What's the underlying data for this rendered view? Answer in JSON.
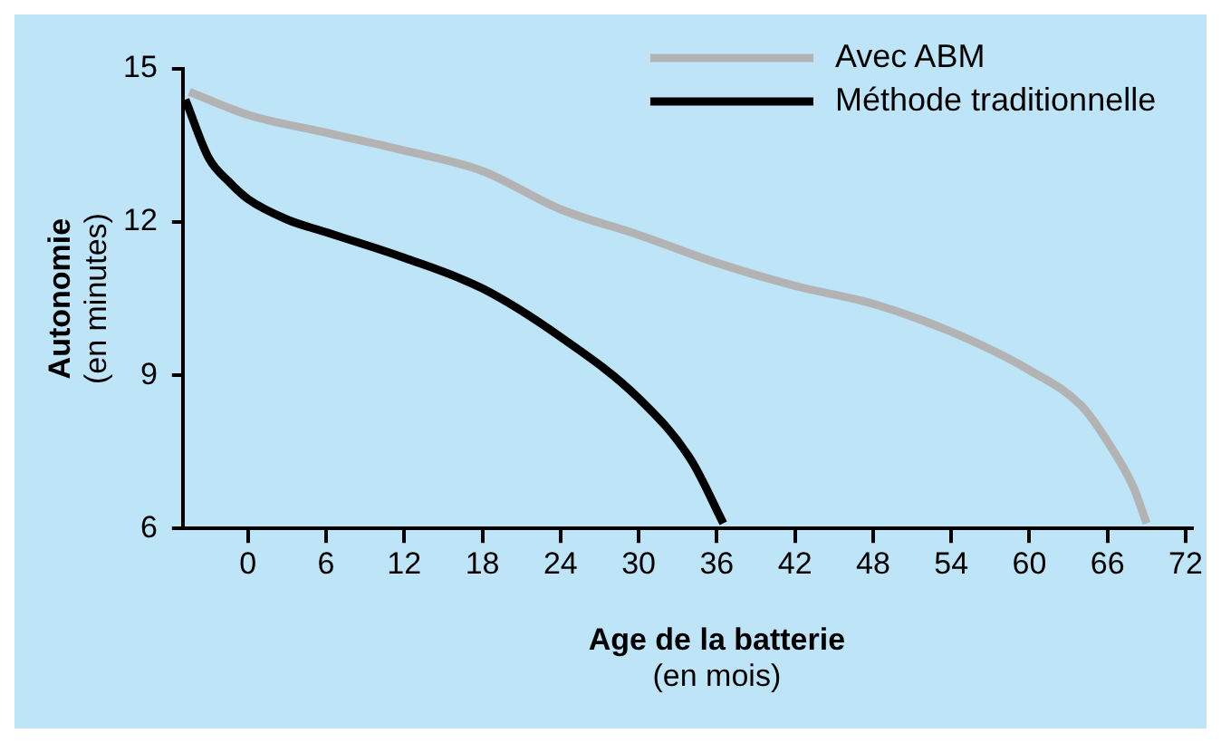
{
  "chart_data": {
    "type": "line",
    "xlabel": "Age de la batterie\n(en mois)",
    "ylabel": "Autonomie\n(en minutes)",
    "xlim": [
      -5,
      72.5
    ],
    "xticks": [
      0,
      6,
      12,
      18,
      24,
      30,
      36,
      42,
      48,
      54,
      60,
      66,
      72
    ],
    "ylim": [
      6,
      15
    ],
    "yticks": [
      6,
      9,
      12,
      15
    ],
    "grid": false,
    "legend": "top right",
    "marker": "none",
    "line_style": "solid",
    "series": [
      {
        "name": "Avec ABM",
        "color": "#b3b3b3",
        "x": [
          -4.5,
          0,
          6,
          12,
          18,
          24,
          30,
          36,
          42,
          48,
          54,
          60,
          64,
          66,
          68,
          69
        ],
        "values": [
          14.55,
          14.1,
          13.75,
          13.4,
          13.0,
          12.25,
          11.75,
          11.2,
          10.75,
          10.4,
          9.85,
          9.1,
          8.4,
          7.7,
          6.8,
          6.1
        ]
      },
      {
        "name": "Méthode traditionnelle",
        "color": "#000000",
        "x": [
          -4.8,
          -3,
          -1.5,
          0,
          3,
          6,
          12,
          18,
          24,
          30,
          34,
          36.5
        ],
        "values": [
          14.4,
          13.25,
          12.8,
          12.45,
          12.05,
          11.8,
          11.3,
          10.7,
          9.75,
          8.55,
          7.35,
          6.1
        ]
      }
    ]
  }
}
